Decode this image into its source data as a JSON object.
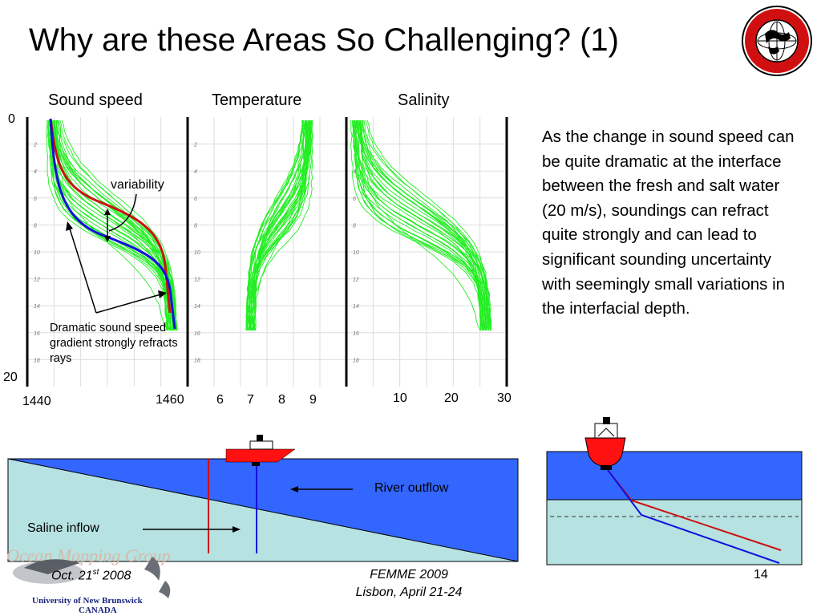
{
  "slide": {
    "title": "Why are these Areas So Challenging? (1)",
    "body": "As the change in sound speed can be quite dramatic at the interface between the fresh and salt water (20 m/s), soundings can refract quite strongly and can lead to significant sounding uncertainty with seemingly small variations in the interfacial depth.",
    "logo_text": "GEODESY AND GEOMATICS ENGINEERING",
    "logo_sub": "UNB"
  },
  "profiles": {
    "headers": [
      "Sound speed",
      "Temperature",
      "Salinity"
    ],
    "depth_top": "0",
    "depth_bottom": "20",
    "depth_ticks": [
      "2",
      "4",
      "6",
      "8",
      "10",
      "12",
      "14",
      "16",
      "18"
    ],
    "sound_x_min": "1440",
    "sound_x_max": "1460",
    "temp_ticks": [
      "6",
      "7",
      "8",
      "9"
    ],
    "sal_ticks": [
      "10",
      "20",
      "30"
    ],
    "variability_label": "variability",
    "gradient_note": "Dramatic sound speed gradient strongly refracts rays"
  },
  "scene": {
    "river_label": "River outflow",
    "saline_label": "Saline inflow"
  },
  "footer": {
    "date_main": "Oct. 21",
    "date_sup": "st",
    "date_year": " 2008",
    "conf_line1": "FEMME 2009",
    "conf_line2": "Lisbon, April 21-24",
    "page": "14",
    "org_faded": "Ocean Mapping Group",
    "univ_line1": "University of New Brunswick",
    "univ_line2": "CANADA"
  },
  "colors": {
    "green": "#22ee22",
    "red": "#cc1111",
    "blue": "#1111dd",
    "fresh": "#3366ff",
    "salt": "#b6e2e2",
    "ship": "#ff1111"
  }
}
